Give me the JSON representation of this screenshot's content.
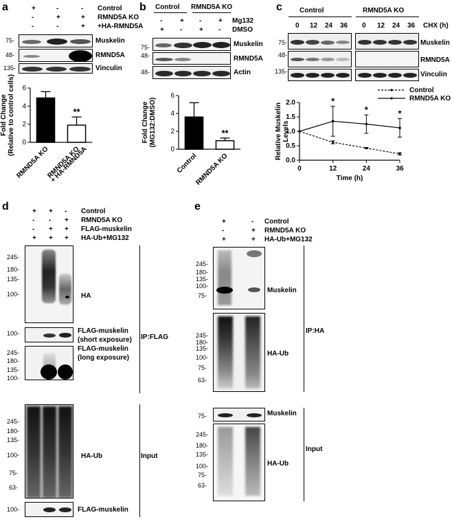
{
  "panels": {
    "a": {
      "letter": "a",
      "rows": [
        {
          "label": "Control",
          "signs": [
            "+",
            "-",
            "-"
          ]
        },
        {
          "label": "RMND5A KO",
          "signs": [
            "-",
            "+",
            "+"
          ]
        },
        {
          "label": "+HA-RMND5A",
          "signs": [
            "-",
            "-",
            "+"
          ]
        }
      ],
      "blots": [
        {
          "mw": "75-",
          "name": "Muskelin"
        },
        {
          "mw": "48-",
          "name": "RMND5A"
        },
        {
          "mw": "135-",
          "name": "Vinculin"
        }
      ]
    },
    "b": {
      "letter": "b",
      "groups": [
        "Control",
        "RMND5A KO"
      ],
      "rows": [
        {
          "label": "Mg132",
          "signs": [
            "-",
            "+",
            "-",
            "+"
          ]
        },
        {
          "label": "DMSO",
          "signs": [
            "+",
            "-",
            "+",
            "-"
          ]
        }
      ],
      "blots": [
        {
          "mw": "75-",
          "name": "Muskelin"
        },
        {
          "mw": "48-",
          "name": "RMND5A"
        },
        {
          "mw": "48-",
          "name": "Actin"
        }
      ]
    },
    "c": {
      "letter": "c",
      "groups": [
        "Control",
        "RMND5A KO"
      ],
      "cht_label": "CHX (h)",
      "times": [
        "0",
        "12",
        "24",
        "36",
        "0",
        "12",
        "24",
        "36"
      ],
      "blots": [
        {
          "mw": "75-",
          "name": "Muskelin"
        },
        {
          "mw": "48-",
          "name": "RMND5A"
        },
        {
          "mw": "135-",
          "name": "Vinculin"
        }
      ]
    },
    "d": {
      "letter": "d",
      "rows": [
        {
          "label": "Control",
          "signs": [
            "+",
            "+",
            "-"
          ]
        },
        {
          "label": "RMND5A KO",
          "signs": [
            "-",
            "-",
            "+"
          ]
        },
        {
          "label": "FLAG-muskelin",
          "signs": [
            "-",
            "+",
            "+"
          ]
        },
        {
          "label": "HA-Ub+MG132",
          "signs": [
            "+",
            "+",
            "+"
          ]
        }
      ],
      "blot1_mw": [
        "245-",
        "180-",
        "135-",
        "100-"
      ],
      "blot1_label": "HA",
      "blot2_mw": "100-",
      "blot2_label_1": "FLAG-muskelin",
      "blot2_label_2": "(short exposure)",
      "blot3_mw": [
        "245-",
        "180-",
        "135-",
        "100-"
      ],
      "blot3_label_1": "FLAG-muskelin",
      "blot3_label_2": "(long exposure)",
      "blot4_mw": [
        "245-",
        "180-",
        "135-",
        "100-",
        "75-",
        "63-"
      ],
      "blot4_label": "HA-Ub",
      "blot5_mw": "100-",
      "blot5_label": "FLAG-muskelin",
      "bracket_ip": "IP:FLAG",
      "bracket_input": "Input"
    },
    "e": {
      "letter": "e",
      "rows": [
        {
          "label": "Control",
          "signs": [
            "+",
            "-"
          ]
        },
        {
          "label": "RMND5A KO",
          "signs": [
            "-",
            "+"
          ]
        },
        {
          "label": "HA-Ub+MG132",
          "signs": [
            "+",
            "+"
          ]
        }
      ],
      "blot1_mw": [
        "245-",
        "180-",
        "135-",
        "100-",
        "75-"
      ],
      "blot1_label": "Muskelin",
      "blot2_mw": [
        "245-",
        "180-",
        "135-",
        "100-",
        "75-",
        "63-"
      ],
      "blot2_label": "HA-Ub",
      "blot3_mw": "75-",
      "blot3_label": "Muskelin",
      "blot4_mw": [
        "245-",
        "180-",
        "135-",
        "100-",
        "75-",
        "63-"
      ],
      "blot4_label": "HA-Ub",
      "bracket_ip": "IP:HA",
      "bracket_input": "Input"
    }
  },
  "chart_data": [
    {
      "type": "bar",
      "panel": "a",
      "categories": [
        "RMND5A KO",
        "RMND5A KO + HA-RMND5A"
      ],
      "values": [
        4.9,
        1.9
      ],
      "errors": [
        0.7,
        0.9
      ],
      "fills": [
        "#000000",
        "#ffffff"
      ],
      "significance": [
        "",
        "**"
      ],
      "ylabel": "Fold Change (Relative to control cells)",
      "ylim": [
        0,
        6
      ],
      "yticks": [
        "0",
        "2",
        "4",
        "6"
      ]
    },
    {
      "type": "bar",
      "panel": "b",
      "categories": [
        "Control",
        "RMND5A KO"
      ],
      "values": [
        3.6,
        0.95
      ],
      "errors": [
        1.6,
        0.3
      ],
      "fills": [
        "#000000",
        "#ffffff"
      ],
      "significance": [
        "",
        "**"
      ],
      "ylabel": "Fold Change (MG132:DMSO)",
      "ylim": [
        0,
        6
      ],
      "yticks": [
        "0",
        "2",
        "4",
        "6"
      ]
    },
    {
      "type": "line",
      "panel": "c",
      "x": [
        0,
        12,
        24,
        36
      ],
      "series": [
        {
          "name": "Control",
          "values": [
            1.0,
            0.62,
            0.42,
            0.22
          ],
          "errors": [
            0,
            0.05,
            0.02,
            0.04
          ],
          "dash": true
        },
        {
          "name": "RMND5A KO",
          "values": [
            1.0,
            1.35,
            1.25,
            1.12
          ],
          "errors": [
            0,
            0.52,
            0.32,
            0.32
          ],
          "dash": false
        }
      ],
      "significance": [
        "",
        "*",
        "*",
        "*"
      ],
      "xlabel": "Time (h)",
      "ylabel": "Relative Muskelin Levels",
      "xlim": [
        0,
        36
      ],
      "ylim": [
        0,
        2.0
      ],
      "yticks": [
        "0.0",
        "0.5",
        "1.0",
        "1.5",
        "2.0"
      ],
      "xticks": [
        "0",
        "12",
        "24",
        "36"
      ]
    }
  ]
}
